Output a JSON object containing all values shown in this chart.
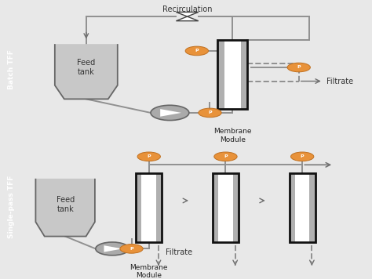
{
  "bg_color": "#e8e8e8",
  "panel_bg": "#f5f5f5",
  "sidebar_color": "#808080",
  "tank_fill": "#c8c8c8",
  "membrane_gray": "#b0b0b0",
  "pressure_color": "#e8923a",
  "line_color": "#909090",
  "line_width": 1.4,
  "dashed_color": "#909090",
  "arrow_color": "#707070",
  "top_label": "Batch TFF",
  "bottom_label": "Single-pass TFF",
  "recirculation_text": "Recirculation",
  "filtrate_text": "Filtrate",
  "membrane_text": "Membrane\nModule",
  "feed_text": "Feed\ntank"
}
